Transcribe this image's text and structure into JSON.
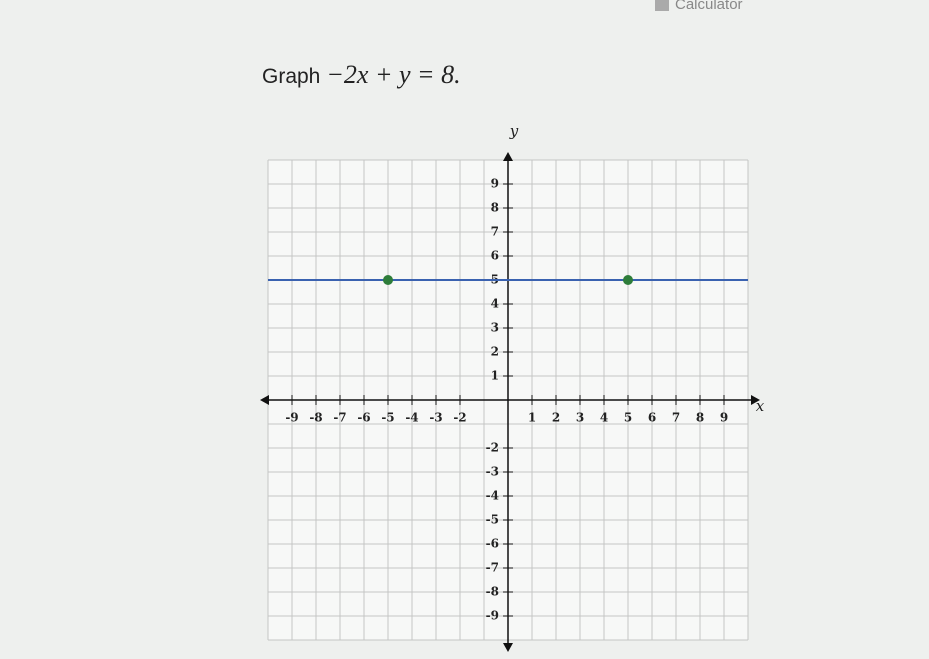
{
  "header": {
    "calculator": "Calculator"
  },
  "question": {
    "prefix": "Graph",
    "equation": "−2x + y = 8."
  },
  "graph": {
    "x_label": "x",
    "y_label": "y",
    "xlim": [
      -10,
      10
    ],
    "ylim": [
      -10,
      10
    ],
    "gridlines": [
      -10,
      -9,
      -8,
      -7,
      -6,
      -5,
      -4,
      -3,
      -2,
      -1,
      0,
      1,
      2,
      3,
      4,
      5,
      6,
      7,
      8,
      9,
      10
    ],
    "xticks": [
      -9,
      -8,
      -7,
      -6,
      -5,
      -4,
      -3,
      -2,
      1,
      2,
      3,
      4,
      5,
      6,
      7,
      8,
      9
    ],
    "yticks": [
      9,
      8,
      7,
      6,
      5,
      4,
      3,
      2,
      1,
      -2,
      -3,
      -4,
      -5,
      -6,
      -7,
      -8,
      -9
    ],
    "line_color": "#3a62b0",
    "point_color": "#2e7d3a",
    "points": [
      {
        "x": -5,
        "y": 5
      },
      {
        "x": 5,
        "y": 5
      }
    ]
  }
}
